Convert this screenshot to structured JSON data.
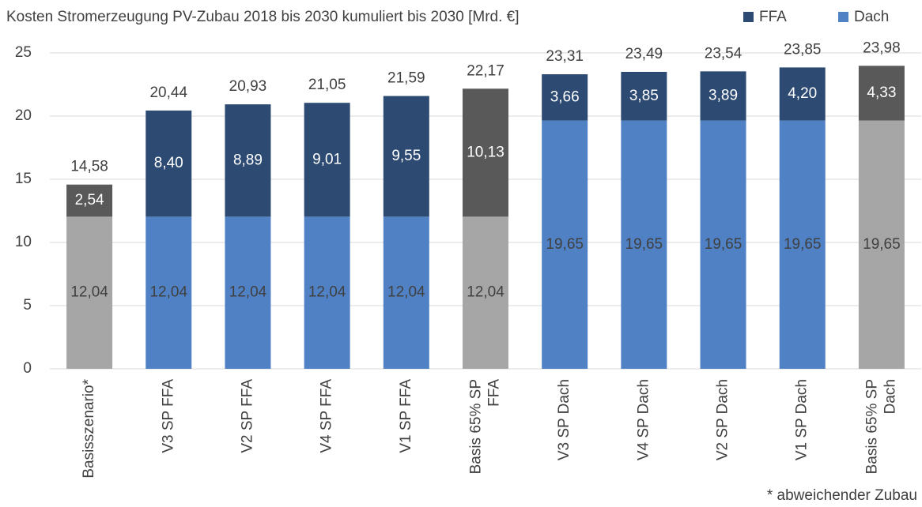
{
  "chart_data": {
    "type": "stacked_bar",
    "title": "Kosten Stromerzeugung PV-Zubau 2018 bis 2030 kumuliert bis 2030 [Mrd. €]",
    "annotation": "* abweichender Zubau",
    "categories": [
      "Basisszenario*",
      "V3 SP FFA",
      "V2 SP FFA",
      "V4 SP FFA",
      "V1 SP FFA",
      "Basis 65% SP\nFFA",
      "V3 SP Dach",
      "V4 SP Dach",
      "V2 SP Dach",
      "V1 SP Dach",
      "Basis 65% SP\nDach"
    ],
    "series": [
      {
        "name": "Dach",
        "color": "#4f81c4",
        "colors": [
          "#a6a6a6",
          "#4f81c4",
          "#4f81c4",
          "#4f81c4",
          "#4f81c4",
          "#a6a6a6",
          "#4f81c4",
          "#4f81c4",
          "#4f81c4",
          "#4f81c4",
          "#a6a6a6"
        ],
        "values": [
          12.04,
          12.04,
          12.04,
          12.04,
          12.04,
          12.04,
          19.65,
          19.65,
          19.65,
          19.65,
          19.65
        ],
        "value_labels": [
          "12,04",
          "12,04",
          "12,04",
          "12,04",
          "12,04",
          "12,04",
          "19,65",
          "19,65",
          "19,65",
          "19,65",
          "19,65"
        ]
      },
      {
        "name": "FFA",
        "color": "#2d4a73",
        "colors": [
          "#595959",
          "#2d4a73",
          "#2d4a73",
          "#2d4a73",
          "#2d4a73",
          "#595959",
          "#2d4a73",
          "#2d4a73",
          "#2d4a73",
          "#2d4a73",
          "#595959"
        ],
        "values": [
          2.54,
          8.4,
          8.89,
          9.01,
          9.55,
          10.13,
          3.66,
          3.85,
          3.89,
          4.2,
          4.33
        ],
        "value_labels": [
          "2,54",
          "8,40",
          "8,89",
          "9,01",
          "9,55",
          "10,13",
          "3,66",
          "3,85",
          "3,89",
          "4,20",
          "4,33"
        ]
      }
    ],
    "totals": [
      14.58,
      20.44,
      20.93,
      21.05,
      21.59,
      22.17,
      23.31,
      23.49,
      23.54,
      23.85,
      23.98
    ],
    "total_labels": [
      "14,58",
      "20,44",
      "20,93",
      "21,05",
      "21,59",
      "22,17",
      "23,31",
      "23,49",
      "23,54",
      "23,85",
      "23,98"
    ],
    "ylim": [
      0,
      25
    ],
    "yticks": [
      0,
      5,
      10,
      15,
      20,
      25
    ],
    "grid": true
  }
}
